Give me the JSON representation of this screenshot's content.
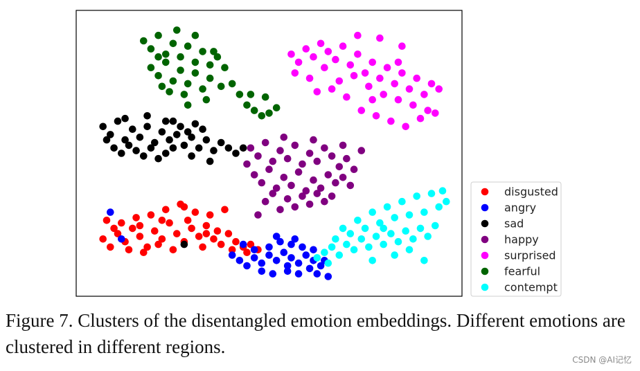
{
  "caption": "Figure 7. Clusters of the disentangled emotion embeddings. Different emotions are clustered in different regions.",
  "watermark": "CSDN @AI记忆",
  "chart_data": {
    "type": "scatter",
    "title": "",
    "xlabel": "",
    "ylabel": "",
    "xlim": [
      0,
      100
    ],
    "ylim": [
      0,
      100
    ],
    "ticks": false,
    "grid": false,
    "legend_position": "outside-right-bottom",
    "series": [
      {
        "name": "disgusted",
        "color": "#ff0000",
        "points": [
          [
            5,
            18
          ],
          [
            7,
            15
          ],
          [
            9,
            20
          ],
          [
            11,
            17
          ],
          [
            13,
            22
          ],
          [
            15,
            19
          ],
          [
            17,
            15
          ],
          [
            19,
            21
          ],
          [
            21,
            18
          ],
          [
            23,
            24
          ],
          [
            25,
            20
          ],
          [
            27,
            17
          ],
          [
            29,
            22
          ],
          [
            31,
            19
          ],
          [
            33,
            23
          ],
          [
            35,
            18
          ],
          [
            37,
            16
          ],
          [
            39,
            20
          ],
          [
            41,
            17
          ],
          [
            43,
            15
          ],
          [
            45,
            16
          ],
          [
            47,
            14
          ],
          [
            10,
            24
          ],
          [
            14,
            26
          ],
          [
            18,
            27
          ],
          [
            22,
            29
          ],
          [
            26,
            31
          ],
          [
            30,
            28
          ],
          [
            34,
            27
          ],
          [
            8,
            22
          ],
          [
            12,
            14
          ],
          [
            16,
            13
          ],
          [
            20,
            16
          ],
          [
            24,
            14
          ],
          [
            28,
            25
          ],
          [
            32,
            15
          ],
          [
            36,
            21
          ],
          [
            40,
            14
          ],
          [
            44,
            13
          ],
          [
            6,
            25
          ],
          [
            38,
            29
          ],
          [
            27,
            30
          ],
          [
            21,
            25
          ],
          [
            33,
            20
          ],
          [
            15,
            23
          ]
        ]
      },
      {
        "name": "angry",
        "color": "#0000ff",
        "points": [
          [
            40,
            12
          ],
          [
            42,
            10
          ],
          [
            44,
            8
          ],
          [
            46,
            11
          ],
          [
            48,
            9
          ],
          [
            50,
            12
          ],
          [
            52,
            10
          ],
          [
            54,
            13
          ],
          [
            56,
            11
          ],
          [
            58,
            9
          ],
          [
            60,
            12
          ],
          [
            62,
            10
          ],
          [
            64,
            8
          ],
          [
            50,
            15
          ],
          [
            53,
            17
          ],
          [
            56,
            16
          ],
          [
            59,
            15
          ],
          [
            46,
            14
          ],
          [
            48,
            6
          ],
          [
            51,
            5
          ],
          [
            55,
            6
          ],
          [
            58,
            5
          ],
          [
            61,
            7
          ],
          [
            63,
            5
          ],
          [
            66,
            4
          ],
          [
            43,
            16
          ],
          [
            52,
            19
          ],
          [
            57,
            18
          ],
          [
            62,
            14
          ],
          [
            65,
            10
          ],
          [
            7,
            28
          ],
          [
            10,
            18
          ],
          [
            55,
            8
          ]
        ]
      },
      {
        "name": "sad",
        "color": "#000000",
        "points": [
          [
            5,
            60
          ],
          [
            7,
            57
          ],
          [
            9,
            62
          ],
          [
            11,
            55
          ],
          [
            13,
            59
          ],
          [
            15,
            56
          ],
          [
            17,
            60
          ],
          [
            19,
            54
          ],
          [
            21,
            58
          ],
          [
            23,
            55
          ],
          [
            25,
            57
          ],
          [
            27,
            53
          ],
          [
            29,
            56
          ],
          [
            31,
            52
          ],
          [
            33,
            55
          ],
          [
            35,
            51
          ],
          [
            37,
            54
          ],
          [
            39,
            52
          ],
          [
            41,
            50
          ],
          [
            43,
            52
          ],
          [
            8,
            52
          ],
          [
            10,
            50
          ],
          [
            12,
            53
          ],
          [
            14,
            51
          ],
          [
            16,
            49
          ],
          [
            18,
            52
          ],
          [
            20,
            48
          ],
          [
            22,
            50
          ],
          [
            24,
            62
          ],
          [
            26,
            60
          ],
          [
            28,
            58
          ],
          [
            30,
            61
          ],
          [
            32,
            59
          ],
          [
            6,
            55
          ],
          [
            11,
            63
          ],
          [
            17,
            64
          ],
          [
            22,
            62
          ],
          [
            34,
            47
          ],
          [
            29,
            49
          ],
          [
            24,
            52
          ],
          [
            27,
            16
          ]
        ]
      },
      {
        "name": "happy",
        "color": "#800080",
        "points": [
          [
            45,
            52
          ],
          [
            47,
            49
          ],
          [
            49,
            54
          ],
          [
            51,
            47
          ],
          [
            53,
            51
          ],
          [
            55,
            48
          ],
          [
            57,
            53
          ],
          [
            59,
            46
          ],
          [
            61,
            50
          ],
          [
            63,
            47
          ],
          [
            65,
            52
          ],
          [
            67,
            49
          ],
          [
            69,
            45
          ],
          [
            71,
            48
          ],
          [
            73,
            44
          ],
          [
            46,
            42
          ],
          [
            48,
            39
          ],
          [
            50,
            44
          ],
          [
            52,
            37
          ],
          [
            54,
            41
          ],
          [
            56,
            38
          ],
          [
            58,
            43
          ],
          [
            60,
            36
          ],
          [
            62,
            40
          ],
          [
            64,
            37
          ],
          [
            66,
            42
          ],
          [
            68,
            39
          ],
          [
            70,
            41
          ],
          [
            72,
            38
          ],
          [
            49,
            32
          ],
          [
            51,
            35
          ],
          [
            53,
            29
          ],
          [
            55,
            33
          ],
          [
            57,
            30
          ],
          [
            59,
            34
          ],
          [
            61,
            31
          ],
          [
            63,
            35
          ],
          [
            65,
            32
          ],
          [
            67,
            34
          ],
          [
            47,
            27
          ],
          [
            54,
            56
          ],
          [
            62,
            55
          ],
          [
            70,
            53
          ],
          [
            75,
            51
          ],
          [
            44,
            46
          ]
        ]
      },
      {
        "name": "surprised",
        "color": "#ff00ff",
        "points": [
          [
            56,
            87
          ],
          [
            58,
            84
          ],
          [
            60,
            89
          ],
          [
            62,
            86
          ],
          [
            64,
            91
          ],
          [
            66,
            88
          ],
          [
            68,
            85
          ],
          [
            70,
            90
          ],
          [
            72,
            83
          ],
          [
            74,
            87
          ],
          [
            76,
            80
          ],
          [
            78,
            84
          ],
          [
            80,
            78
          ],
          [
            82,
            82
          ],
          [
            84,
            76
          ],
          [
            86,
            80
          ],
          [
            88,
            74
          ],
          [
            90,
            78
          ],
          [
            92,
            72
          ],
          [
            94,
            76
          ],
          [
            57,
            80
          ],
          [
            61,
            78
          ],
          [
            65,
            82
          ],
          [
            69,
            77
          ],
          [
            73,
            79
          ],
          [
            77,
            75
          ],
          [
            81,
            72
          ],
          [
            85,
            70
          ],
          [
            89,
            68
          ],
          [
            93,
            66
          ],
          [
            75,
            66
          ],
          [
            79,
            64
          ],
          [
            83,
            62
          ],
          [
            87,
            60
          ],
          [
            91,
            63
          ],
          [
            95,
            65
          ],
          [
            71,
            71
          ],
          [
            67,
            74
          ],
          [
            63,
            73
          ],
          [
            86,
            90
          ],
          [
            80,
            93
          ],
          [
            74,
            94
          ],
          [
            96,
            74
          ],
          [
            85,
            84
          ],
          [
            78,
            70
          ]
        ]
      },
      {
        "name": "fearful",
        "color": "#006400",
        "points": [
          [
            16,
            92
          ],
          [
            18,
            89
          ],
          [
            20,
            94
          ],
          [
            22,
            87
          ],
          [
            24,
            91
          ],
          [
            26,
            86
          ],
          [
            28,
            90
          ],
          [
            30,
            84
          ],
          [
            32,
            88
          ],
          [
            34,
            83
          ],
          [
            36,
            86
          ],
          [
            18,
            82
          ],
          [
            20,
            79
          ],
          [
            22,
            84
          ],
          [
            24,
            77
          ],
          [
            26,
            81
          ],
          [
            28,
            76
          ],
          [
            30,
            80
          ],
          [
            32,
            74
          ],
          [
            34,
            78
          ],
          [
            38,
            82
          ],
          [
            40,
            76
          ],
          [
            42,
            72
          ],
          [
            44,
            68
          ],
          [
            46,
            66
          ],
          [
            48,
            64
          ],
          [
            50,
            65
          ],
          [
            52,
            67
          ],
          [
            20,
            86
          ],
          [
            25,
            96
          ],
          [
            30,
            94
          ],
          [
            35,
            88
          ],
          [
            37,
            75
          ],
          [
            27,
            72
          ],
          [
            23,
            73
          ],
          [
            33,
            70
          ],
          [
            45,
            72
          ],
          [
            49,
            71
          ],
          [
            21,
            75
          ],
          [
            28,
            68
          ]
        ]
      },
      {
        "name": "contempt",
        "color": "#00ffff",
        "points": [
          [
            63,
            11
          ],
          [
            65,
            13
          ],
          [
            67,
            15
          ],
          [
            69,
            12
          ],
          [
            71,
            16
          ],
          [
            73,
            14
          ],
          [
            75,
            18
          ],
          [
            77,
            15
          ],
          [
            79,
            19
          ],
          [
            81,
            16
          ],
          [
            83,
            20
          ],
          [
            85,
            17
          ],
          [
            87,
            21
          ],
          [
            89,
            18
          ],
          [
            91,
            22
          ],
          [
            93,
            19
          ],
          [
            95,
            23
          ],
          [
            72,
            20
          ],
          [
            76,
            22
          ],
          [
            80,
            24
          ],
          [
            84,
            26
          ],
          [
            88,
            27
          ],
          [
            92,
            28
          ],
          [
            96,
            30
          ],
          [
            98,
            32
          ],
          [
            68,
            18
          ],
          [
            74,
            25
          ],
          [
            78,
            28
          ],
          [
            82,
            30
          ],
          [
            86,
            32
          ],
          [
            90,
            34
          ],
          [
            94,
            35
          ],
          [
            97,
            36
          ],
          [
            70,
            22
          ],
          [
            78,
            10
          ],
          [
            84,
            12
          ],
          [
            88,
            14
          ],
          [
            92,
            10
          ],
          [
            66,
            9
          ],
          [
            81,
            22
          ]
        ]
      }
    ]
  }
}
